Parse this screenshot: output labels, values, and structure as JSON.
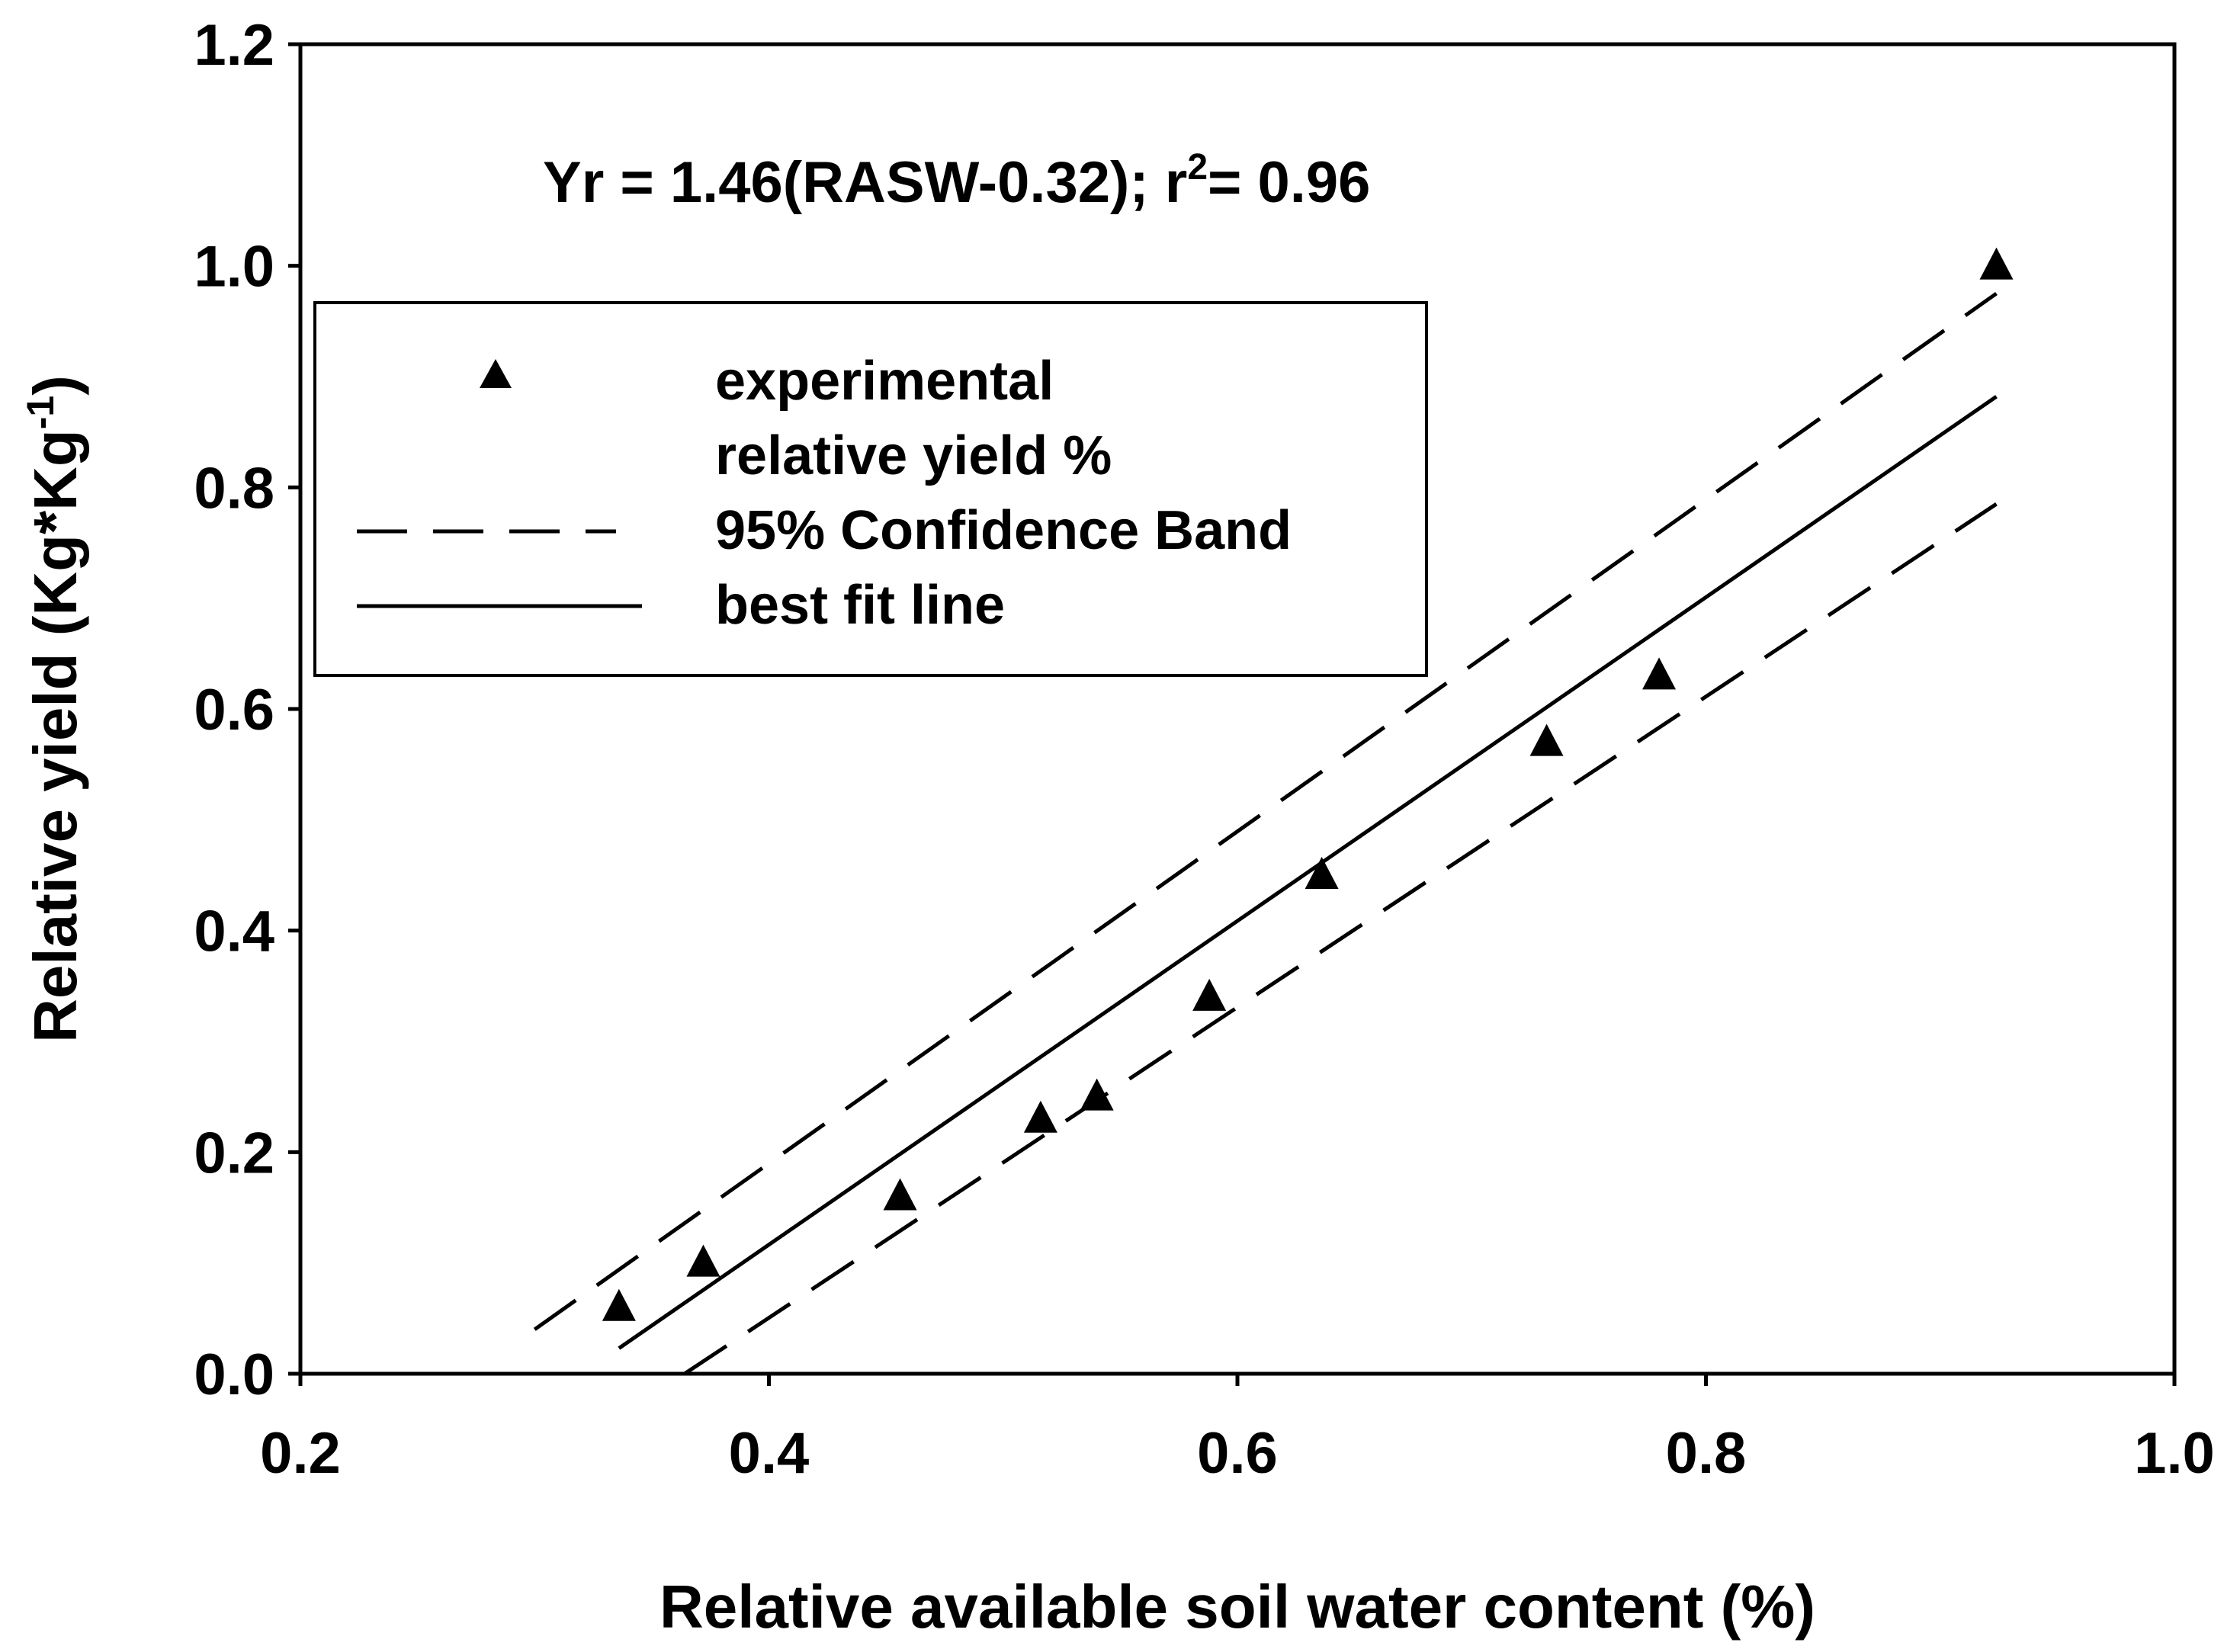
{
  "chart_data": {
    "type": "scatter",
    "title": "",
    "xlabel": "Relative available soil water content  (%)",
    "ylabel": {
      "main": "Relative yield (Kg*Kg",
      "superscript": "-1",
      "close": ")"
    },
    "xlim": [
      0.2,
      1.0
    ],
    "ylim": [
      0.0,
      1.2
    ],
    "x_ticks": [
      "0.2",
      "0.4",
      "0.6",
      "0.8",
      "1.0"
    ],
    "y_ticks": [
      "0.0",
      "0.2",
      "0.4",
      "0.6",
      "0.8",
      "1.0",
      "1.2"
    ],
    "grid": false,
    "equation": {
      "main": "Yr = 1.46(RASW-0.32); r",
      "superscript": "2",
      "tail": "= 0.96"
    },
    "legend": {
      "placement": "top-left",
      "entries": [
        {
          "label": "experimental",
          "marker": "triangle"
        },
        {
          "label": "relative yield %",
          "marker": "none"
        },
        {
          "label": "95% Confidence Band",
          "marker": "dashed-line"
        },
        {
          "label": "best fit  line",
          "marker": "solid-line"
        }
      ]
    },
    "series": [
      {
        "name": "experimental relative yield %",
        "kind": "points",
        "marker": "triangle",
        "x": [
          0.336,
          0.372,
          0.456,
          0.516,
          0.54,
          0.588,
          0.636,
          0.732,
          0.78,
          0.924
        ],
        "y": [
          0.06,
          0.1,
          0.16,
          0.23,
          0.25,
          0.34,
          0.45,
          0.57,
          0.63,
          1.0
        ]
      },
      {
        "name": "best fit line",
        "kind": "line",
        "style": "solid",
        "x": [
          0.336,
          0.924
        ],
        "y": [
          0.023,
          0.882
        ]
      },
      {
        "name": "95% Confidence Band (upper)",
        "kind": "line",
        "style": "dashed",
        "x": [
          0.3,
          0.924
        ],
        "y": [
          0.04,
          0.975
        ]
      },
      {
        "name": "95% Confidence Band (lower)",
        "kind": "line",
        "style": "dashed",
        "x": [
          0.364,
          0.924
        ],
        "y": [
          0.0,
          0.785
        ]
      }
    ]
  }
}
